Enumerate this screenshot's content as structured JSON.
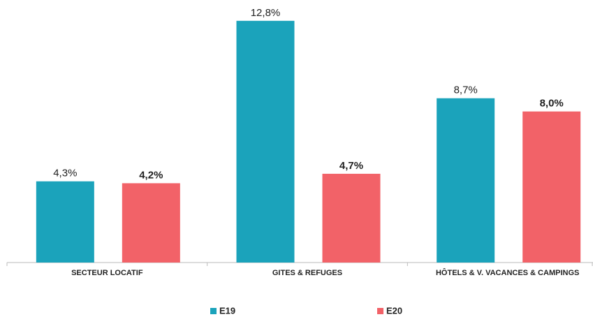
{
  "chart_data": {
    "type": "bar",
    "categories": [
      "SECTEUR LOCATIF",
      "GITES & REFUGES",
      "HÔTELS & V. VACANCES & CAMPINGS"
    ],
    "series": [
      {
        "name": "E19",
        "color": "#1ba3bb",
        "values": [
          4.3,
          12.8,
          8.7
        ],
        "value_labels": [
          "4,3%",
          "12,8%",
          "8,7%"
        ]
      },
      {
        "name": "E20",
        "color": "#f26268",
        "values": [
          4.2,
          4.7,
          8.0
        ],
        "value_labels": [
          "4,2%",
          "4,7%",
          "8,0%"
        ]
      }
    ],
    "ylim": [
      0,
      13.2
    ],
    "grid": false
  }
}
